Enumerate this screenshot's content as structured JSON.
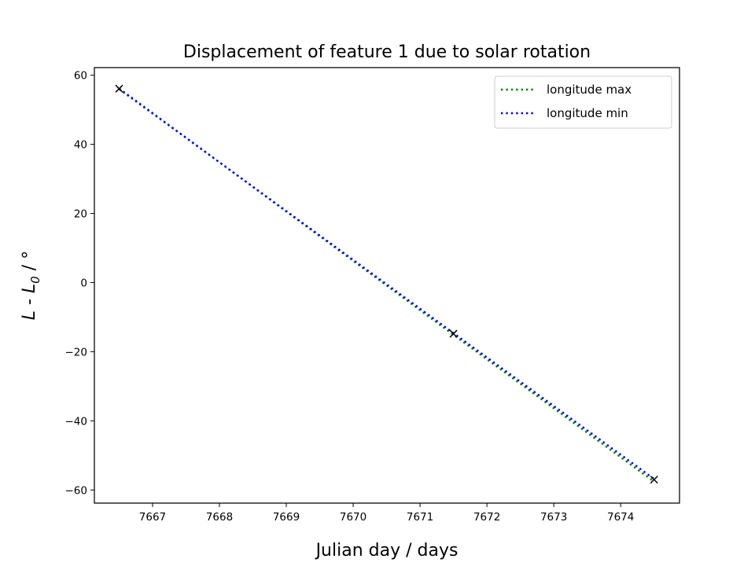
{
  "chart_data": {
    "type": "line",
    "title": "Displacement of feature 1 due to solar rotation",
    "xlabel": "Julian day / days",
    "ylabel": {
      "prefix": "L - L",
      "subscript": "0",
      "suffix": " / °"
    },
    "xlim": [
      7666.13,
      7674.88
    ],
    "ylim": [
      -63.8,
      62.2
    ],
    "xticks": [
      7667,
      7668,
      7669,
      7670,
      7671,
      7672,
      7673,
      7674
    ],
    "yticks": [
      -60,
      -40,
      -20,
      0,
      20,
      40,
      60
    ],
    "ytick_labels": [
      "−60",
      "−40",
      "−20",
      "0",
      "20",
      "40",
      "60"
    ],
    "grid": false,
    "legend_position": "top-right",
    "series": [
      {
        "name": "longitude max",
        "color": "#008000",
        "linestyle": "dotted",
        "x": [
          7666.5,
          7671.5,
          7674.5
        ],
        "y": [
          56.2,
          -15.1,
          -57.6
        ]
      },
      {
        "name": "longitude min",
        "color": "#0000ff",
        "linestyle": "dotted",
        "x": [
          7666.5,
          7671.5,
          7674.5
        ],
        "y": [
          56.0,
          -14.6,
          -56.8
        ]
      }
    ],
    "markers": {
      "symbol": "x",
      "color": "#000000",
      "points": [
        {
          "x": 7666.5,
          "y": 56.1
        },
        {
          "x": 7671.5,
          "y": -14.8
        },
        {
          "x": 7674.5,
          "y": -57.0
        }
      ]
    }
  }
}
